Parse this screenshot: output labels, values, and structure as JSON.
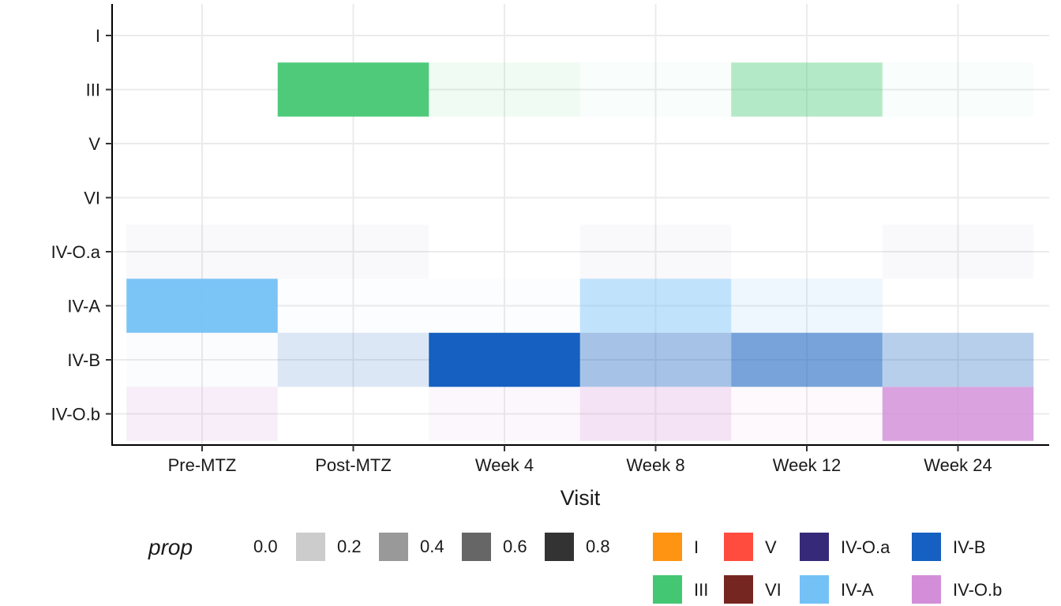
{
  "chart_data": {
    "type": "heatmap",
    "xlabel": "Visit",
    "ylabel": "",
    "x_categories": [
      "Pre-MTZ",
      "Post-MTZ",
      "Week 4",
      "Week 8",
      "Week 12",
      "Week 24"
    ],
    "y_categories": [
      "I",
      "III",
      "V",
      "VI",
      "IV-O.a",
      "IV-A",
      "IV-B",
      "IV-O.b"
    ],
    "cells": [
      {
        "x": "Post-MTZ",
        "y": "III",
        "value": 0.95,
        "fill": "III"
      },
      {
        "x": "Week 4",
        "y": "III",
        "value": 0.08,
        "fill": "III"
      },
      {
        "x": "Week 8",
        "y": "III",
        "value": 0.03,
        "fill": "III"
      },
      {
        "x": "Week 12",
        "y": "III",
        "value": 0.4,
        "fill": "III"
      },
      {
        "x": "Week 24",
        "y": "III",
        "value": 0.03,
        "fill": "III"
      },
      {
        "x": "Pre-MTZ",
        "y": "IV-O.a",
        "value": 0.03,
        "fill": "IV-O.a"
      },
      {
        "x": "Post-MTZ",
        "y": "IV-O.a",
        "value": 0.03,
        "fill": "IV-O.a"
      },
      {
        "x": "Week 8",
        "y": "IV-O.a",
        "value": 0.03,
        "fill": "IV-O.a"
      },
      {
        "x": "Week 24",
        "y": "IV-O.a",
        "value": 0.03,
        "fill": "IV-O.a"
      },
      {
        "x": "Pre-MTZ",
        "y": "IV-A",
        "value": 0.95,
        "fill": "IV-A"
      },
      {
        "x": "Post-MTZ",
        "y": "IV-A",
        "value": 0.03,
        "fill": "IV-A"
      },
      {
        "x": "Week 4",
        "y": "IV-A",
        "value": 0.03,
        "fill": "IV-A"
      },
      {
        "x": "Week 8",
        "y": "IV-A",
        "value": 0.45,
        "fill": "IV-A"
      },
      {
        "x": "Week 12",
        "y": "IV-A",
        "value": 0.12,
        "fill": "IV-A"
      },
      {
        "x": "Pre-MTZ",
        "y": "IV-B",
        "value": 0.02,
        "fill": "IV-B"
      },
      {
        "x": "Post-MTZ",
        "y": "IV-B",
        "value": 0.15,
        "fill": "IV-B"
      },
      {
        "x": "Week 4",
        "y": "IV-B",
        "value": 1.0,
        "fill": "IV-B"
      },
      {
        "x": "Week 8",
        "y": "IV-B",
        "value": 0.38,
        "fill": "IV-B"
      },
      {
        "x": "Week 12",
        "y": "IV-B",
        "value": 0.58,
        "fill": "IV-B"
      },
      {
        "x": "Week 24",
        "y": "IV-B",
        "value": 0.3,
        "fill": "IV-B"
      },
      {
        "x": "Pre-MTZ",
        "y": "IV-O.b",
        "value": 0.15,
        "fill": "IV-O.b"
      },
      {
        "x": "Week 4",
        "y": "IV-O.b",
        "value": 0.07,
        "fill": "IV-O.b"
      },
      {
        "x": "Week 8",
        "y": "IV-O.b",
        "value": 0.25,
        "fill": "IV-O.b"
      },
      {
        "x": "Week 12",
        "y": "IV-O.b",
        "value": 0.05,
        "fill": "IV-O.b"
      },
      {
        "x": "Week 24",
        "y": "IV-O.b",
        "value": 0.82,
        "fill": "IV-O.b"
      }
    ],
    "legend_prop": {
      "title": "prop",
      "breaks": [
        "0.0",
        "0.2",
        "0.4",
        "0.6",
        "0.8"
      ],
      "values": [
        0.0,
        0.2,
        0.4,
        0.6,
        0.8
      ]
    },
    "legend_fill": {
      "items": [
        {
          "label": "I",
          "color": "#FF9412"
        },
        {
          "label": "V",
          "color": "#FF4C3F"
        },
        {
          "label": "IV-O.a",
          "color": "#362A78"
        },
        {
          "label": "IV-B",
          "color": "#1560C0"
        },
        {
          "label": "III",
          "color": "#44C773"
        },
        {
          "label": "VI",
          "color": "#762620"
        },
        {
          "label": "IV-A",
          "color": "#74C1F6"
        },
        {
          "label": "IV-O.b",
          "color": "#D28ED8"
        }
      ]
    },
    "grid": true,
    "legend_position": "bottom"
  }
}
